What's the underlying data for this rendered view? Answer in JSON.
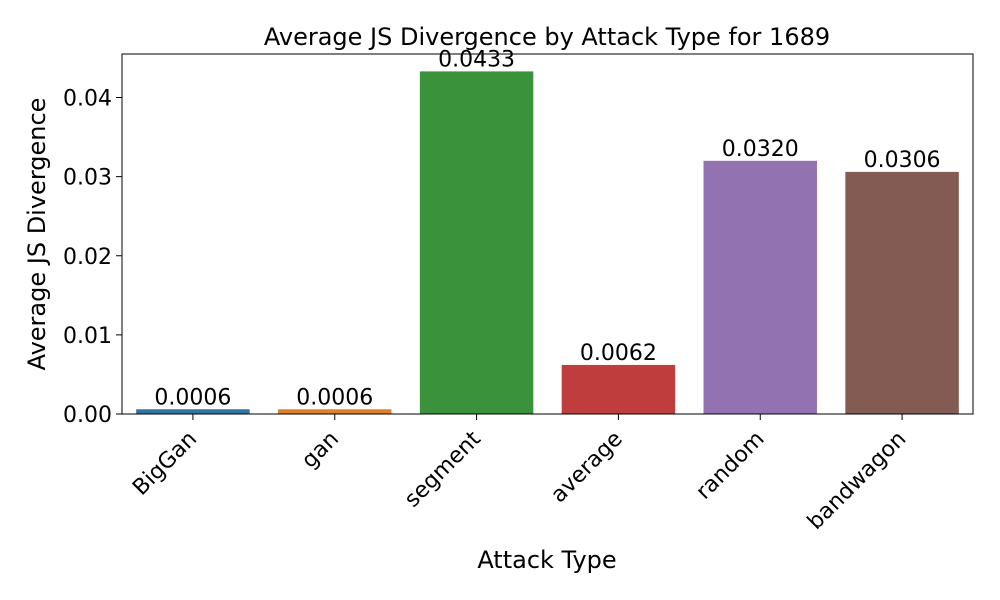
{
  "chart_data": {
    "type": "bar",
    "title": "Average JS Divergence by Attack Type for 1689",
    "xlabel": "Attack Type",
    "ylabel": "Average JS Divergence",
    "categories": [
      "BigGan",
      "gan",
      "segment",
      "average",
      "random",
      "bandwagon"
    ],
    "values": [
      0.0006,
      0.0006,
      0.0433,
      0.0062,
      0.032,
      0.0306
    ],
    "value_labels": [
      "0.0006",
      "0.0006",
      "0.0433",
      "0.0062",
      "0.0320",
      "0.0306"
    ],
    "colors": [
      "#3274a1",
      "#e1812c",
      "#3a923a",
      "#c03d3e",
      "#9372b2",
      "#845b53"
    ],
    "ylim": [
      0,
      0.0455
    ],
    "yticks": [
      0.0,
      0.01,
      0.02,
      0.03,
      0.04
    ],
    "ytick_labels": [
      "0.00",
      "0.01",
      "0.02",
      "0.03",
      "0.04"
    ],
    "grid": false,
    "legend": "none"
  }
}
